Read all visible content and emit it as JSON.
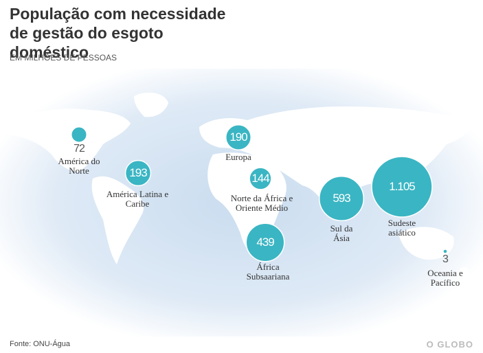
{
  "title": "População com necessidade de gestão do esgoto doméstico",
  "subtitle": "EM MILHÕES DE PESSOAS",
  "regions": [
    {
      "name": "América do Norte",
      "value": 72
    },
    {
      "name": "América Latina e Caribe",
      "value": 193
    },
    {
      "name": "Europa",
      "value": 190
    },
    {
      "name": "Norte da África e Oriente Médio",
      "value": 144
    },
    {
      "name": "África Subsaariana",
      "value": 439
    },
    {
      "name": "Sul da Ásia",
      "value": 593
    },
    {
      "name": "Sudeste asiático",
      "value": 1105,
      "value_label": "1.105"
    },
    {
      "name": "Oceania e Pacífico",
      "value": 3
    }
  ],
  "source": "Fonte: ONU-Água",
  "logo": "O GLOBO"
}
